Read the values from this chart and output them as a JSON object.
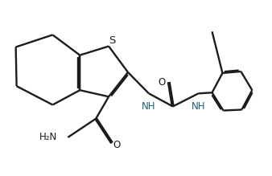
{
  "bg_color": "#ffffff",
  "line_color": "#1c1c1c",
  "NH_color": "#1a6080",
  "line_width": 1.7,
  "dbo": 0.055,
  "font_size": 8.5,
  "S_label": "S",
  "NH_label": "NH",
  "O_label": "O",
  "H2N_label": "H₂N",
  "xlim": [
    0.0,
    10.5
  ],
  "ylim": [
    0.3,
    6.5
  ]
}
